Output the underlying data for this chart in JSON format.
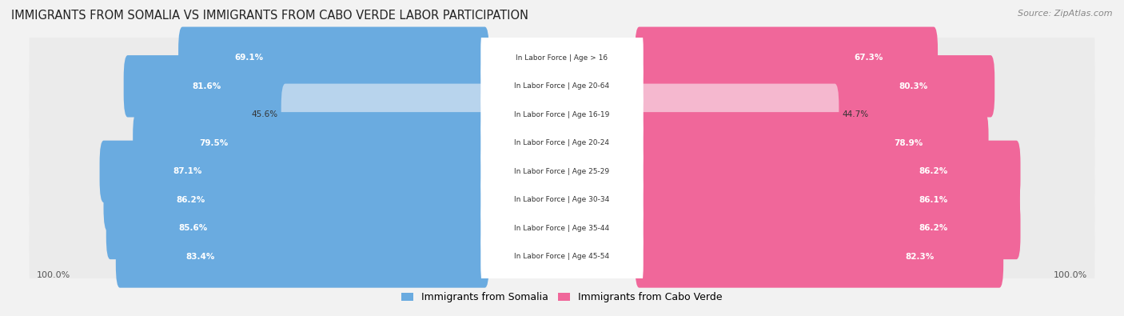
{
  "title": "IMMIGRANTS FROM SOMALIA VS IMMIGRANTS FROM CABO VERDE LABOR PARTICIPATION",
  "source": "Source: ZipAtlas.com",
  "categories": [
    "In Labor Force | Age > 16",
    "In Labor Force | Age 20-64",
    "In Labor Force | Age 16-19",
    "In Labor Force | Age 20-24",
    "In Labor Force | Age 25-29",
    "In Labor Force | Age 30-34",
    "In Labor Force | Age 35-44",
    "In Labor Force | Age 45-54"
  ],
  "somalia_values": [
    69.1,
    81.6,
    45.6,
    79.5,
    87.1,
    86.2,
    85.6,
    83.4
  ],
  "caboverde_values": [
    67.3,
    80.3,
    44.7,
    78.9,
    86.2,
    86.1,
    86.2,
    82.3
  ],
  "somalia_color": "#6aabe0",
  "somalia_color_light": "#b8d4ed",
  "caboverde_color": "#f0679a",
  "caboverde_color_light": "#f5b8cf",
  "row_bg_color": "#ebebeb",
  "legend_somalia": "Immigrants from Somalia",
  "legend_caboverde": "Immigrants from Cabo Verde",
  "figsize": [
    14.06,
    3.95
  ],
  "dpi": 100
}
